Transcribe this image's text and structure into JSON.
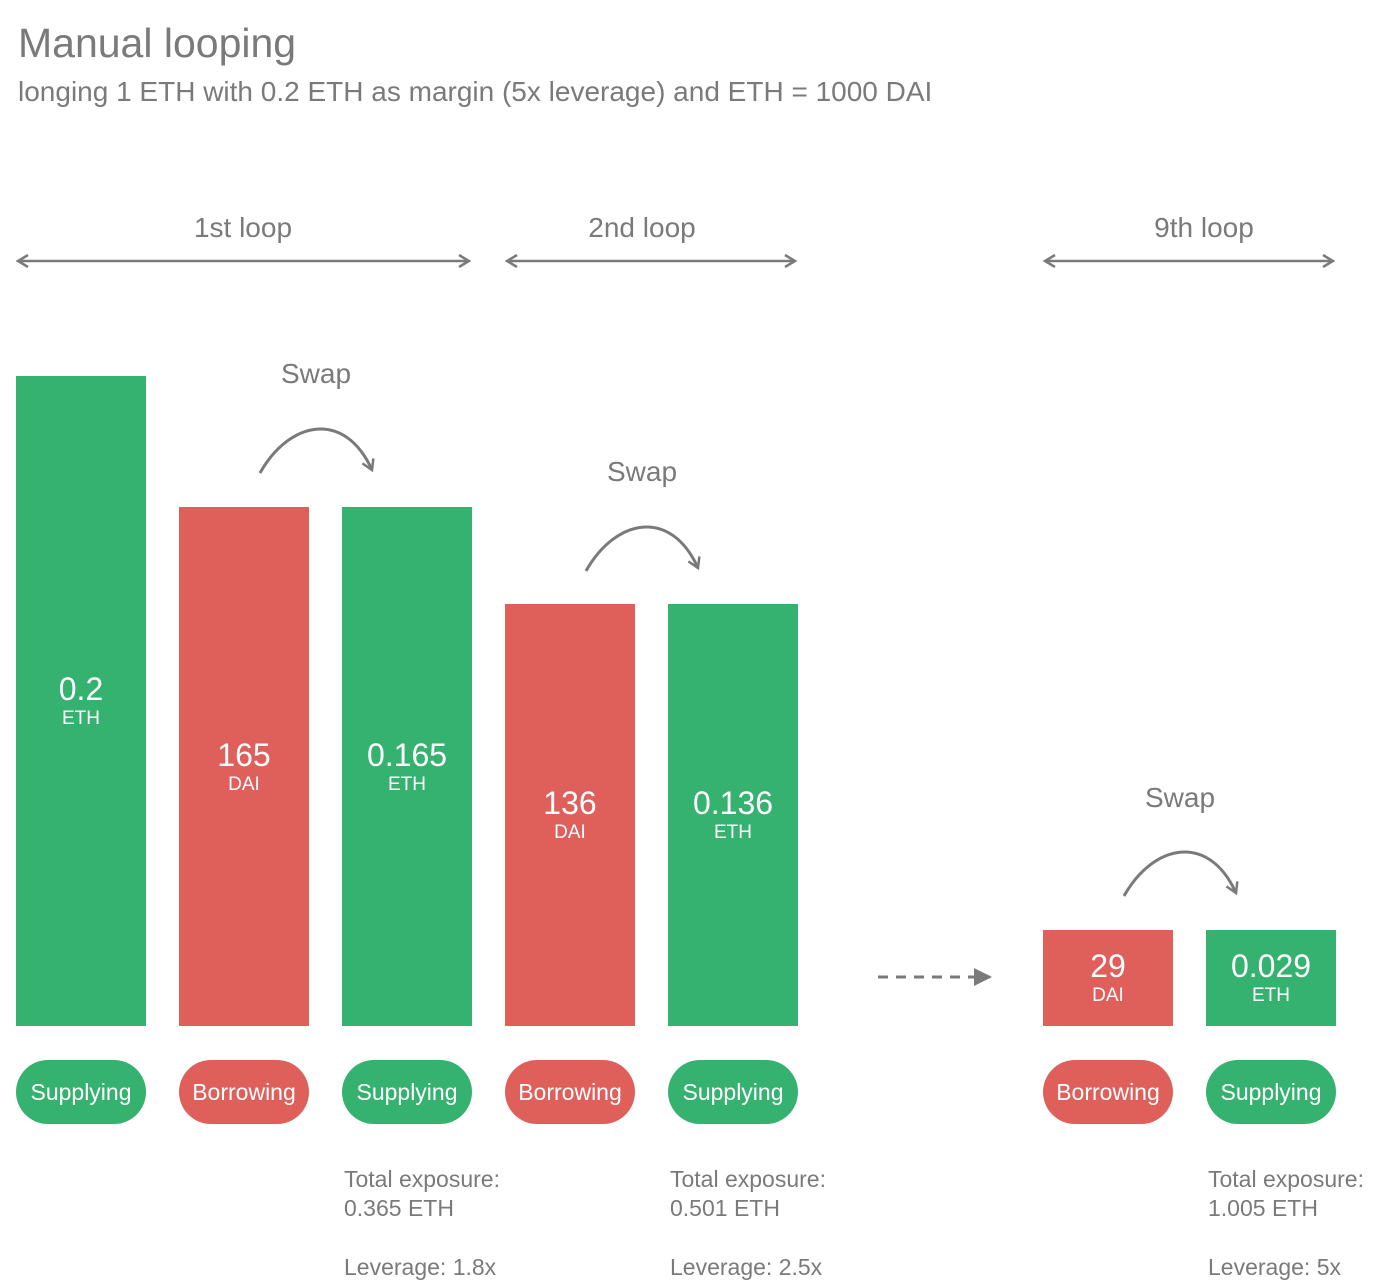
{
  "title": "Manual looping",
  "subtitle": "longing 1 ETH with 0.2 ETH as margin (5x leverage) and ETH = 1000 DAI",
  "colors": {
    "supplying": "#35b26f",
    "borrowing": "#df5f5a",
    "text": "#7a7a7a"
  },
  "loops": [
    {
      "label": "1st loop"
    },
    {
      "label": "2nd loop"
    },
    {
      "label": "9th loop"
    }
  ],
  "swap_label": "Swap",
  "bars": [
    {
      "value": "0.2",
      "unit": "ETH",
      "kind": "Supplying"
    },
    {
      "value": "165",
      "unit": "DAI",
      "kind": "Borrowing"
    },
    {
      "value": "0.165",
      "unit": "ETH",
      "kind": "Supplying"
    },
    {
      "value": "136",
      "unit": "DAI",
      "kind": "Borrowing"
    },
    {
      "value": "0.136",
      "unit": "ETH",
      "kind": "Supplying"
    },
    {
      "value": "29",
      "unit": "DAI",
      "kind": "Borrowing"
    },
    {
      "value": "0.029",
      "unit": "ETH",
      "kind": "Supplying"
    }
  ],
  "totals": [
    {
      "exposure_label": "Total exposure:",
      "exposure": "0.365 ETH",
      "leverage": "Leverage: 1.8x"
    },
    {
      "exposure_label": "Total exposure:",
      "exposure": "0.501 ETH",
      "leverage": "Leverage: 2.5x"
    },
    {
      "exposure_label": "Total exposure:",
      "exposure": "1.005 ETH",
      "leverage": "Leverage: 5x"
    }
  ]
}
